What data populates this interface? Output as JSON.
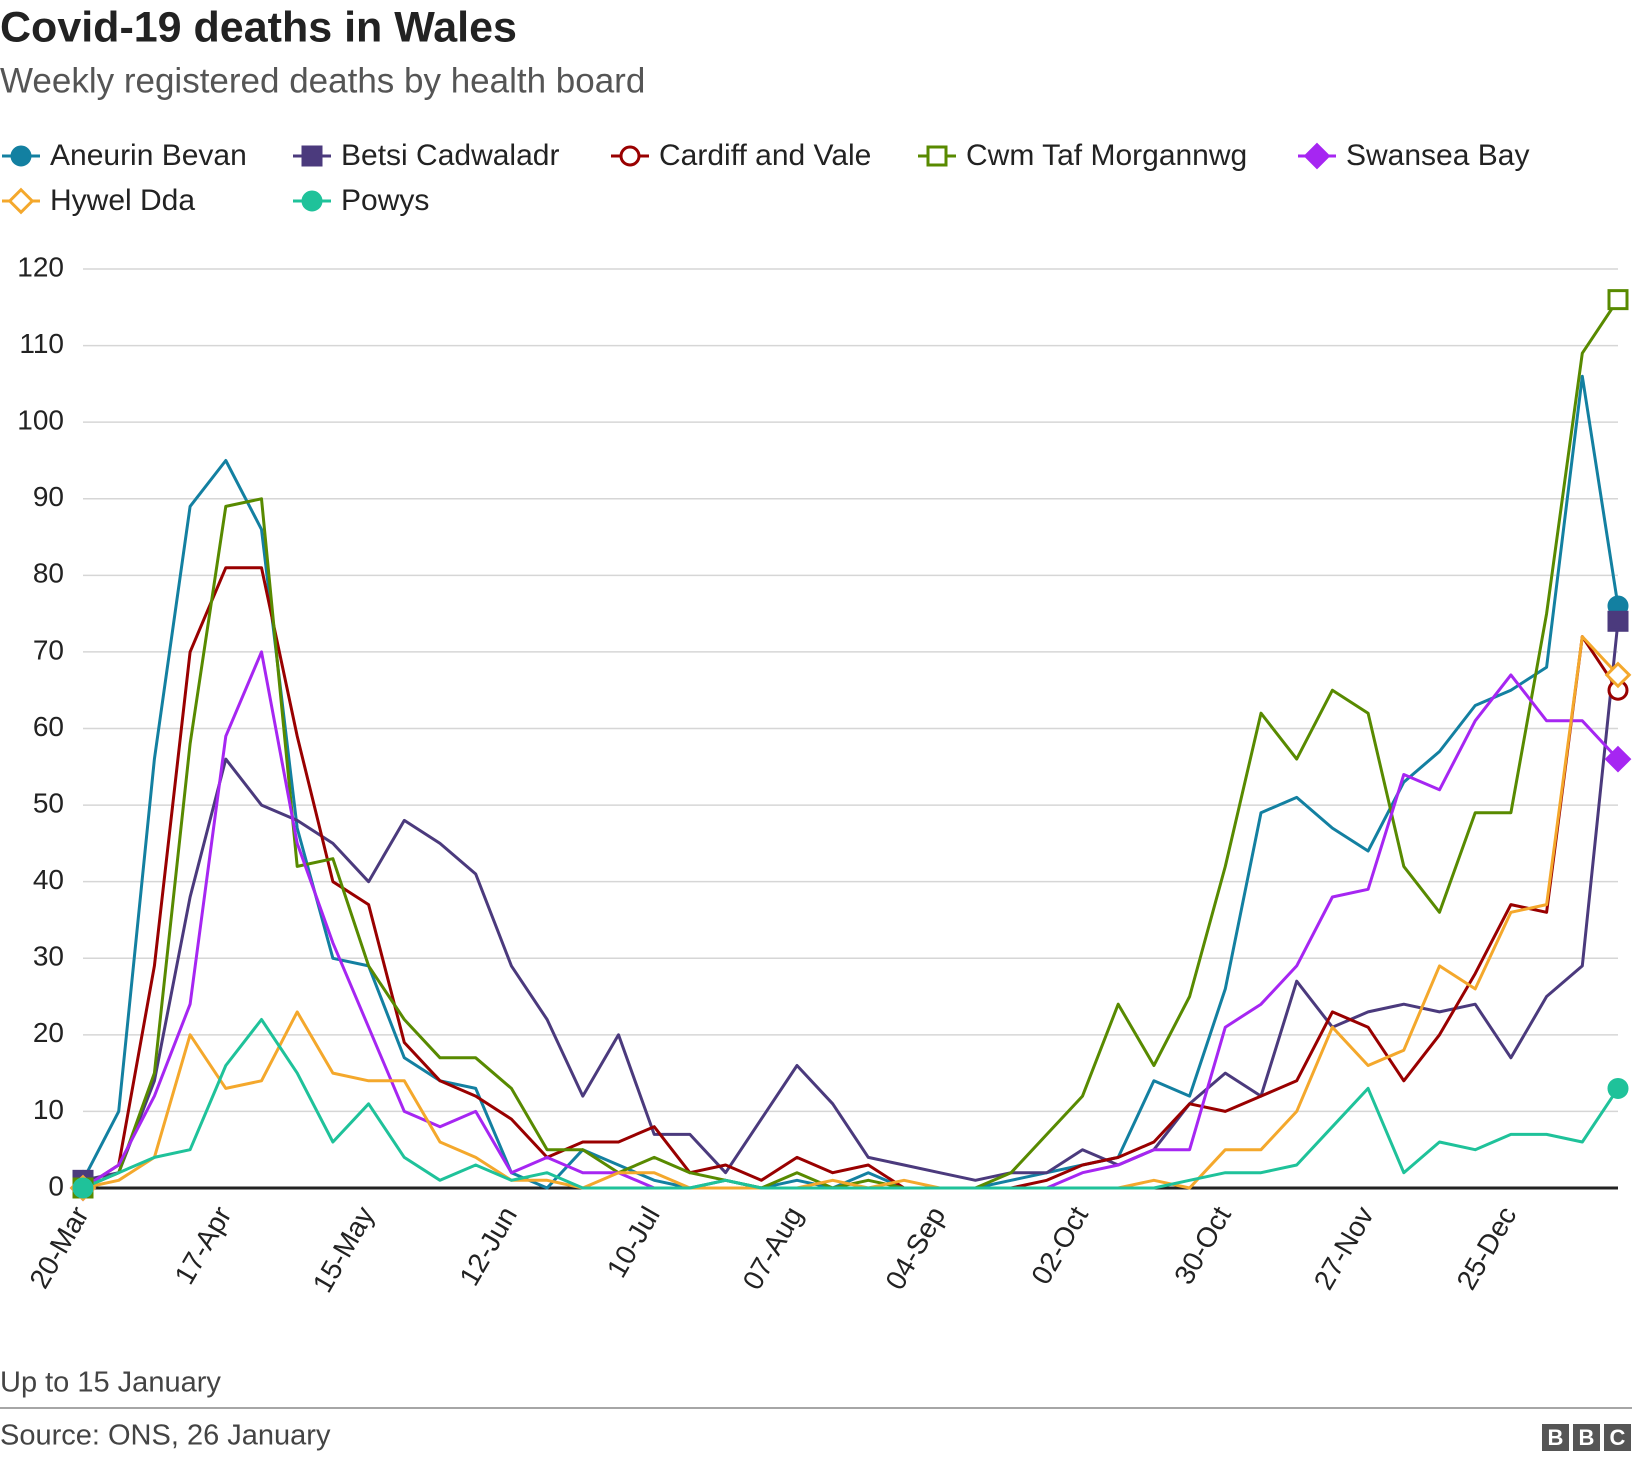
{
  "chart_data": {
    "type": "line",
    "title": "Covid-19 deaths in Wales",
    "subtitle": "Weekly registered deaths by health board",
    "note": "Up to 15 January",
    "source": "Source: ONS, 26 January",
    "logo": "BBC",
    "categories": [
      "20-Mar",
      null,
      null,
      null,
      "17-Apr",
      null,
      null,
      null,
      "15-May",
      null,
      null,
      null,
      "12-Jun",
      null,
      null,
      null,
      "10-Jul",
      null,
      null,
      null,
      "07-Aug",
      null,
      null,
      null,
      "04-Sep",
      null,
      null,
      null,
      "02-Oct",
      null,
      null,
      null,
      "30-Oct",
      null,
      null,
      null,
      "27-Nov",
      null,
      null,
      null,
      "25-Dec",
      null,
      null,
      null
    ],
    "ylim": [
      0,
      120
    ],
    "yticks": [
      0,
      10,
      20,
      30,
      40,
      50,
      60,
      70,
      80,
      90,
      100,
      110,
      120
    ],
    "grid": true,
    "series": [
      {
        "name": "Aneurin Bevan",
        "color": "#1380a1",
        "marker": "circle",
        "filled": true,
        "values": [
          1,
          10,
          56,
          89,
          95,
          86,
          47,
          30,
          29,
          17,
          14,
          13,
          2,
          0,
          5,
          3,
          1,
          0,
          1,
          0,
          1,
          0,
          2,
          0,
          0,
          0,
          1,
          2,
          3,
          4,
          14,
          12,
          26,
          49,
          51,
          47,
          44,
          53,
          57,
          63,
          65,
          68,
          106,
          76
        ]
      },
      {
        "name": "Betsi Cadwaladr",
        "color": "#4b3a7d",
        "marker": "square",
        "filled": true,
        "values": [
          1,
          2,
          14,
          38,
          56,
          50,
          48,
          45,
          40,
          48,
          45,
          41,
          29,
          22,
          12,
          20,
          7,
          7,
          2,
          9,
          16,
          11,
          4,
          3,
          2,
          1,
          2,
          2,
          5,
          3,
          5,
          11,
          15,
          12,
          27,
          21,
          23,
          24,
          23,
          24,
          17,
          25,
          29,
          74
        ]
      },
      {
        "name": "Cardiff and Vale",
        "color": "#990000",
        "marker": "circle",
        "filled": false,
        "values": [
          0,
          3,
          29,
          70,
          81,
          81,
          59,
          40,
          37,
          19,
          14,
          12,
          9,
          4,
          6,
          6,
          8,
          2,
          3,
          1,
          4,
          2,
          3,
          0,
          0,
          0,
          0,
          1,
          3,
          4,
          6,
          11,
          10,
          12,
          14,
          23,
          21,
          14,
          20,
          28,
          37,
          36,
          72,
          65
        ]
      },
      {
        "name": "Cwm Taf Morgannwg",
        "color": "#588a00",
        "marker": "square",
        "filled": false,
        "values": [
          0,
          2,
          15,
          58,
          89,
          90,
          42,
          43,
          29,
          22,
          17,
          17,
          13,
          5,
          5,
          2,
          4,
          2,
          1,
          0,
          2,
          0,
          1,
          0,
          0,
          0,
          2,
          7,
          12,
          24,
          16,
          25,
          42,
          62,
          56,
          65,
          62,
          42,
          36,
          49,
          49,
          75,
          109,
          116
        ]
      },
      {
        "name": "Swansea Bay",
        "color": "#a626f2",
        "marker": "diamond",
        "filled": true,
        "values": [
          0,
          3,
          12,
          24,
          59,
          70,
          45,
          32,
          21,
          10,
          8,
          10,
          2,
          4,
          2,
          2,
          0,
          0,
          0,
          0,
          0,
          0,
          0,
          0,
          0,
          0,
          0,
          0,
          2,
          3,
          5,
          5,
          21,
          24,
          29,
          38,
          39,
          54,
          52,
          61,
          67,
          61,
          61,
          56
        ]
      },
      {
        "name": "Hywel Dda",
        "color": "#f4a82c",
        "marker": "diamond",
        "filled": false,
        "values": [
          0,
          1,
          4,
          20,
          13,
          14,
          23,
          15,
          14,
          14,
          6,
          4,
          1,
          1,
          0,
          2,
          2,
          0,
          0,
          0,
          0,
          1,
          0,
          1,
          0,
          0,
          0,
          0,
          0,
          0,
          1,
          0,
          5,
          5,
          10,
          21,
          16,
          18,
          29,
          26,
          36,
          37,
          72,
          67
        ]
      },
      {
        "name": "Powys",
        "color": "#1fc29a",
        "marker": "circle",
        "filled": true,
        "values": [
          0,
          2,
          4,
          5,
          16,
          22,
          15,
          6,
          11,
          4,
          1,
          3,
          1,
          2,
          0,
          0,
          0,
          0,
          1,
          0,
          0,
          0,
          0,
          0,
          0,
          0,
          0,
          0,
          0,
          0,
          0,
          1,
          2,
          2,
          3,
          8,
          13,
          2,
          6,
          5,
          7,
          7,
          6,
          13
        ]
      }
    ]
  }
}
